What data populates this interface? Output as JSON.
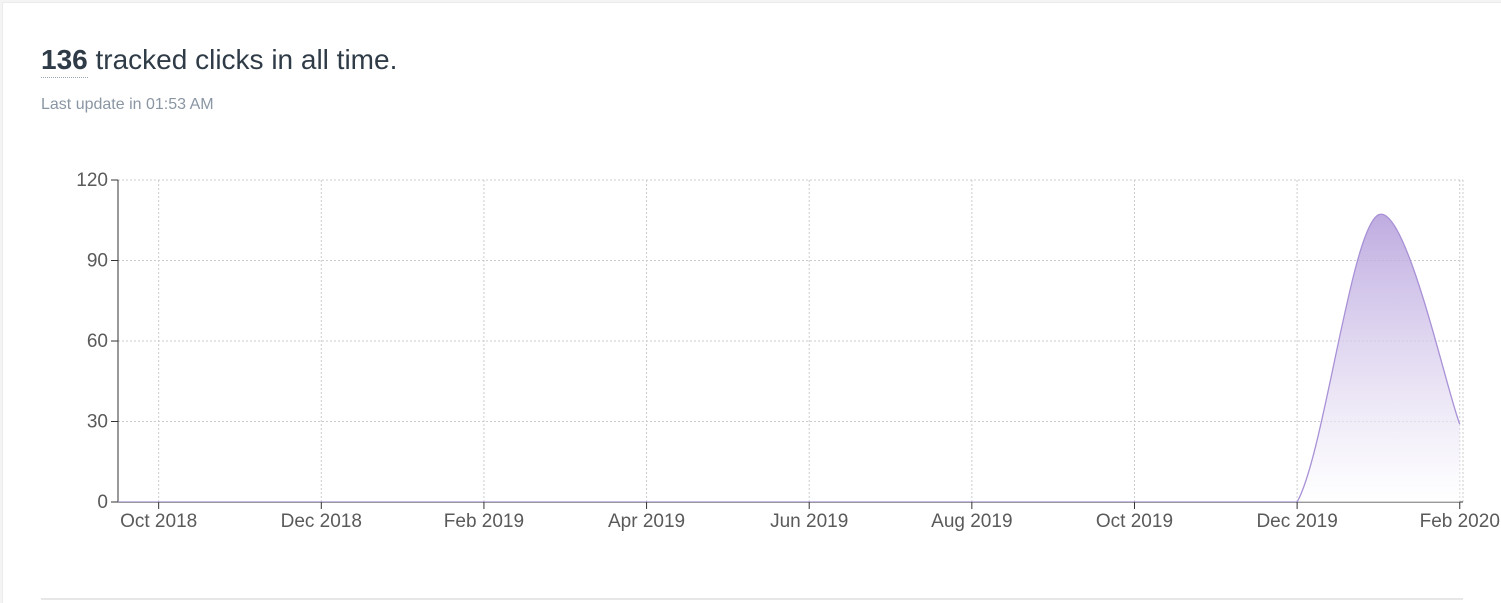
{
  "header": {
    "count": "136",
    "suffix": " tracked clicks in all time.",
    "last_update": "Last update in 01:53 AM"
  },
  "colors": {
    "line": "#a891d6",
    "fill_top": "#b39ddb",
    "grid": "#cccccc",
    "axis": "#333333"
  },
  "chart_data": {
    "type": "area",
    "title": "",
    "xlabel": "",
    "ylabel": "",
    "x_ticks": [
      "Oct 2018",
      "Dec 2018",
      "Feb 2019",
      "Apr 2019",
      "Jun 2019",
      "Aug 2019",
      "Oct 2019",
      "Dec 2019",
      "Feb 2020"
    ],
    "y_ticks": [
      0,
      30,
      60,
      90,
      120
    ],
    "ylim": [
      0,
      120
    ],
    "xlim": [
      "2018-09",
      "2020-02"
    ],
    "grid": true,
    "series": [
      {
        "x": [
          "2018-09",
          "2018-10",
          "2018-11",
          "2018-12",
          "2019-01",
          "2019-02",
          "2019-03",
          "2019-04",
          "2019-05",
          "2019-06",
          "2019-07",
          "2019-08",
          "2019-09",
          "2019-10",
          "2019-11",
          "2019-12",
          "2020-01",
          "2020-02"
        ],
        "values": [
          0,
          0,
          0,
          0,
          0,
          0,
          0,
          0,
          0,
          0,
          0,
          0,
          0,
          0,
          0,
          0,
          107,
          29
        ]
      }
    ]
  }
}
